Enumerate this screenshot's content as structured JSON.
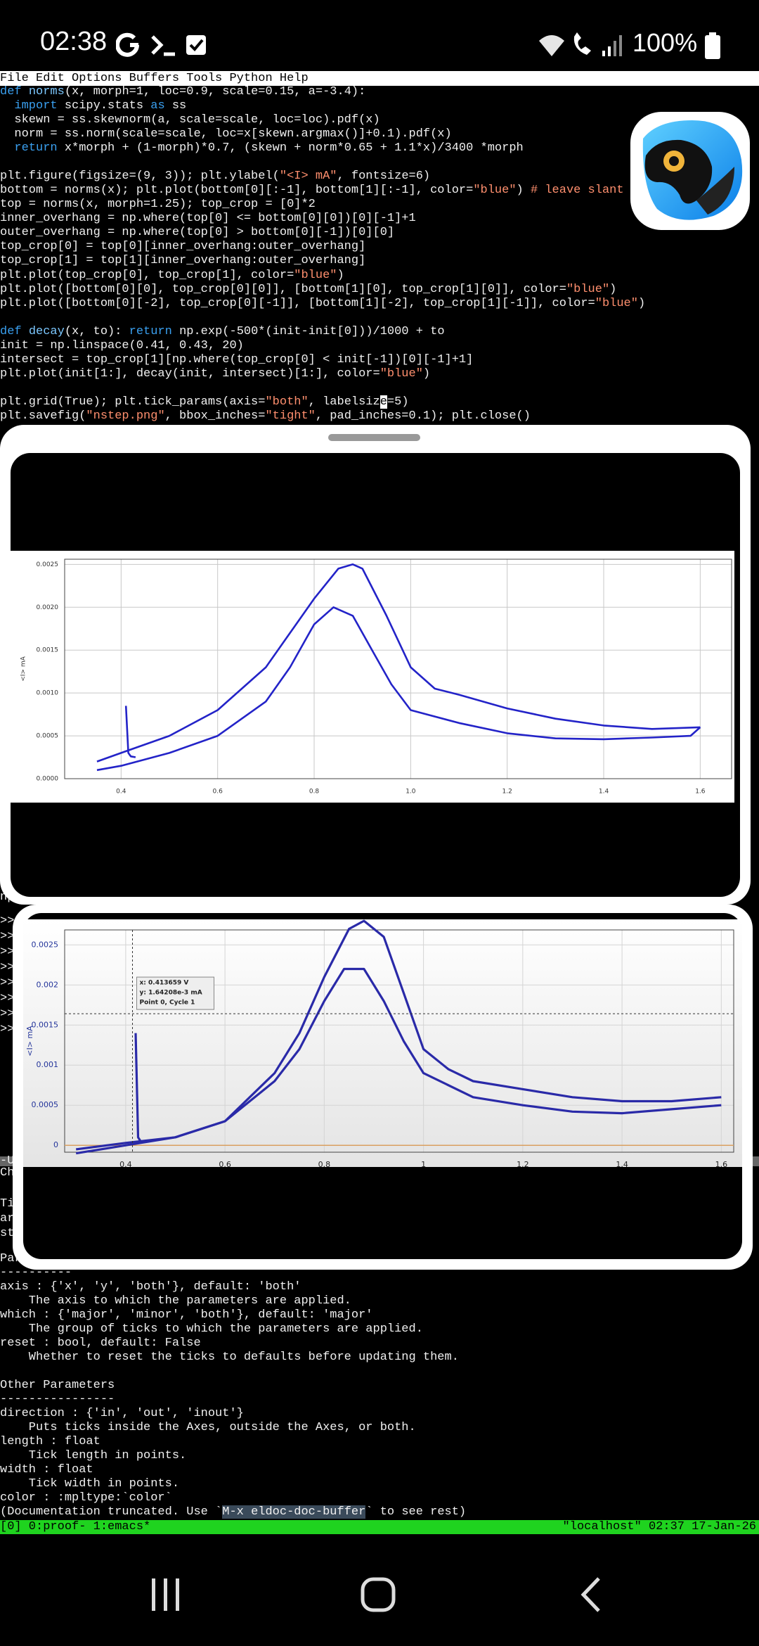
{
  "status_bar": {
    "time": "02:38",
    "battery": "100%"
  },
  "menu_bar": "File Edit Options Buffers Tools Python Help",
  "code_lines": [
    [
      {
        "text": "def",
        "color": "#3aa0f0"
      },
      {
        "text": " "
      },
      {
        "text": "norms",
        "color": "#7cc8ff"
      },
      {
        "text": "(x, morph=1, loc=0.9, scale=0.15, a=-3.4):"
      }
    ],
    [
      {
        "text": "  "
      },
      {
        "text": "import",
        "color": "#3aa0f0"
      },
      {
        "text": " scipy.stats "
      },
      {
        "text": "as",
        "color": "#3aa0f0"
      },
      {
        "text": " ss"
      }
    ],
    [
      {
        "text": "  skewn = ss.skewnorm(a, scale=scale, loc=loc).pdf(x)"
      }
    ],
    [
      {
        "text": "  norm = ss.norm(scale=scale, loc=x[skewn.argmax()]+0.1).pdf(x)"
      }
    ],
    [
      {
        "text": "  "
      },
      {
        "text": "return",
        "color": "#3aa0f0"
      },
      {
        "text": " x*morph + (1-morph)*0.7, (skewn + norm*0.65 + 1.1*x)/3400 *morph"
      }
    ],
    [],
    [
      {
        "text": "plt.figure(figsize=(9, 3)); plt.ylabel("
      },
      {
        "text": "\"<I> mA\"",
        "color": "#ff8f6e"
      },
      {
        "text": ", fontsize=6)"
      }
    ],
    [
      {
        "text": "bottom = norms(x); plt.plot(bottom[0][:-1], bottom[1][:-1], color="
      },
      {
        "text": "\"blue\"",
        "color": "#ff8f6e"
      },
      {
        "text": ") "
      },
      {
        "text": "# leave slant",
        "color": "#ff8f6e"
      }
    ],
    [
      {
        "text": "top = norms(x, morph=1.25); top_crop = [0]*2"
      }
    ],
    [
      {
        "text": "inner_overhang = np.where(top[0] <= bottom[0][0])[0][-1]+1"
      }
    ],
    [
      {
        "text": "outer_overhang = np.where(top[0] > bottom[0][-1])[0][0]"
      }
    ],
    [
      {
        "text": "top_crop[0] = top[0][inner_overhang:outer_overhang]"
      }
    ],
    [
      {
        "text": "top_crop[1] = top[1][inner_overhang:outer_overhang]"
      }
    ],
    [
      {
        "text": "plt.plot(top_crop[0], top_crop[1], color="
      },
      {
        "text": "\"blue\"",
        "color": "#ff8f6e"
      },
      {
        "text": ")"
      }
    ],
    [
      {
        "text": "plt.plot([bottom[0][0], top_crop[0][0]], [bottom[1][0], top_crop[1][0]], color="
      },
      {
        "text": "\"blue\"",
        "color": "#ff8f6e"
      },
      {
        "text": ")"
      }
    ],
    [
      {
        "text": "plt.plot([bottom[0][-2], top_crop[0][-1]], [bottom[1][-2], top_crop[1][-1]], color="
      },
      {
        "text": "\"blue\"",
        "color": "#ff8f6e"
      },
      {
        "text": ")"
      }
    ],
    [],
    [
      {
        "text": "def",
        "color": "#3aa0f0"
      },
      {
        "text": " "
      },
      {
        "text": "decay",
        "color": "#7cc8ff"
      },
      {
        "text": "(x, to): "
      },
      {
        "text": "return",
        "color": "#3aa0f0"
      },
      {
        "text": " np.exp(-500*(init-init[0]))/1000 + to"
      }
    ],
    [
      {
        "text": "init = np.linspace(0.41, 0.43, 20)"
      }
    ],
    [
      {
        "text": "intersect = top_crop[1][np.where(top_crop[0] < init[-1])[0][-1]+1]"
      }
    ],
    [
      {
        "text": "plt.plot(init[1:], decay(init, intersect)[1:], color="
      },
      {
        "text": "\"blue\"",
        "color": "#ff8f6e"
      },
      {
        "text": ")"
      }
    ],
    [],
    [
      {
        "text": "plt.grid(True); plt.tick_params(axis="
      },
      {
        "text": "\"both\"",
        "color": "#ff8f6e"
      },
      {
        "text": ", labelsiz"
      },
      {
        "text": "e",
        "color": "#000000",
        "background": "#ffffff"
      },
      {
        "text": "=5)"
      }
    ],
    [
      {
        "text": "plt.savefig("
      },
      {
        "text": "\"nstep.png\"",
        "color": "#ff8f6e"
      },
      {
        "text": ", bbox_inches="
      },
      {
        "text": "\"tight\"",
        "color": "#ff8f6e"
      },
      {
        "text": ", pad_inches=0.1); plt.close()"
      }
    ]
  ],
  "background_fragments": [
    "np",
    ">>",
    ">>",
    ">>",
    ">>",
    ">>",
    ">>",
    ">>",
    ">>",
    "-U",
    "Ch",
    "Ti",
    "ar",
    "st"
  ],
  "chart_data": [
    {
      "type": "line",
      "ylabel": "<I> mA",
      "xlim": [
        0.283,
        1.665
      ],
      "ylim": [
        0,
        0.00256
      ],
      "xticks": [
        0.4,
        0.6,
        0.8,
        {
          "value": 1,
          "label": "1.0"
        },
        1.2,
        1.4,
        1.6
      ],
      "yticks": [
        {
          "value": 0,
          "label": "0.0000"
        },
        {
          "value": 0.0005,
          "label": "0.0005"
        },
        {
          "value": 0.001,
          "label": "0.0010"
        },
        {
          "value": 0.0015,
          "label": "0.0015"
        },
        {
          "value": 0.002,
          "label": "0.0020"
        },
        {
          "value": 0.0025,
          "label": "0.0025"
        }
      ],
      "grid": true,
      "series": [
        {
          "color": "#2323c8",
          "x": [
            0.35,
            0.4,
            0.5,
            0.6,
            0.7,
            0.75,
            0.8,
            0.84,
            0.88,
            0.92,
            0.96,
            1.0,
            1.1,
            1.2,
            1.3,
            1.4,
            1.5,
            1.58,
            1.6
          ],
          "values": [
            0.0001,
            0.00015,
            0.0003,
            0.0005,
            0.0009,
            0.0013,
            0.0018,
            0.002,
            0.0019,
            0.0015,
            0.0011,
            0.0008,
            0.00065,
            0.00053,
            0.00047,
            0.00046,
            0.00048,
            0.0005,
            0.0006
          ]
        },
        {
          "color": "#2323c8",
          "x": [
            0.35,
            0.4,
            0.5,
            0.6,
            0.7,
            0.75,
            0.8,
            0.85,
            0.88,
            0.9,
            0.95,
            1.0,
            1.05,
            1.1,
            1.2,
            1.3,
            1.4,
            1.5,
            1.6
          ],
          "values": [
            0.0002,
            0.0003,
            0.0005,
            0.0008,
            0.0013,
            0.0017,
            0.0021,
            0.00245,
            0.0025,
            0.00245,
            0.0019,
            0.0013,
            0.00105,
            0.00098,
            0.00082,
            0.0007,
            0.00062,
            0.00058,
            0.0006
          ]
        },
        {
          "color": "#2323c8",
          "x": [
            0.41,
            0.415,
            0.42,
            0.43
          ],
          "values": [
            0.00085,
            0.0003,
            0.00026,
            0.00025
          ]
        }
      ]
    },
    {
      "type": "line",
      "ylabel": "<I> mA",
      "xlim": [
        0.277,
        1.625
      ],
      "ylim": [
        -8.6e-05,
        0.002687
      ],
      "xticks": [
        0.4,
        0.6,
        0.8,
        1,
        1.2,
        1.4,
        1.6
      ],
      "yticks": [
        0,
        0.0005,
        0.001,
        0.0015,
        0.002,
        0.0025
      ],
      "grid": true,
      "crosshair": {
        "x": 0.413659,
        "y": 0.00164208
      },
      "tooltip": [
        "x: 0.413659 V",
        "y: 1.64208e-3 mA",
        "Point 0, Cycle 1"
      ],
      "series": [
        {
          "color": "#2a2aa8",
          "x": [
            0.3,
            0.4,
            0.5,
            0.6,
            0.7,
            0.75,
            0.8,
            0.85,
            0.88,
            0.92,
            0.96,
            1.0,
            1.05,
            1.1,
            1.2,
            1.3,
            1.4,
            1.5,
            1.6
          ],
          "values": [
            -5e-05,
            3e-05,
            0.0001,
            0.0003,
            0.0009,
            0.0014,
            0.0021,
            0.0027,
            0.0028,
            0.0026,
            0.0019,
            0.0012,
            0.00095,
            0.0008,
            0.0007,
            0.0006,
            0.00055,
            0.00055,
            0.0006
          ]
        },
        {
          "color": "#2a2aa8",
          "x": [
            0.3,
            0.4,
            0.5,
            0.6,
            0.7,
            0.75,
            0.8,
            0.84,
            0.88,
            0.92,
            0.96,
            1.0,
            1.1,
            1.2,
            1.3,
            1.4,
            1.5,
            1.6
          ],
          "values": [
            -0.0001,
            0,
            0.0001,
            0.0003,
            0.0008,
            0.0012,
            0.0018,
            0.0022,
            0.0022,
            0.0018,
            0.0013,
            0.0009,
            0.0006,
            0.0005,
            0.00042,
            0.0004,
            0.00045,
            0.0005
          ]
        },
        {
          "color": "#2a2aa8",
          "x": [
            0.42,
            0.425,
            0.43,
            0.44
          ],
          "values": [
            0.0014,
            0.0001,
            5e-05,
            4e-05
          ]
        }
      ]
    }
  ],
  "doc_sections": [
    [
      "Par",
      "----------",
      "axis : {'x', 'y', 'both'}, default: 'both'",
      "    The axis to which the parameters are applied.",
      "which : {'major', 'minor', 'both'}, default: 'major'",
      "    The group of ticks to which the parameters are applied.",
      "reset : bool, default: False",
      "    Whether to reset the ticks to defaults before updating them."
    ],
    [
      "Other Parameters",
      "----------------",
      "direction : {'in', 'out', 'inout'}",
      "    Puts ticks inside the Axes, outside the Axes, or both.",
      "length : float",
      "    Tick length in points.",
      "width : float",
      "    Tick width in points.",
      "color : :mpltype:`color`",
      [
        {
          "text": "(Documentation truncated. Use `"
        },
        {
          "text": "M-x eldoc-doc-buffer",
          "background": "#3a4a5a"
        },
        {
          "text": "` to see rest)"
        }
      ]
    ]
  ],
  "tmux_bar": {
    "left": "[0] 0:proof- 1:emacs*",
    "right": "\"localhost\" 02:37 17-Jan-26"
  }
}
